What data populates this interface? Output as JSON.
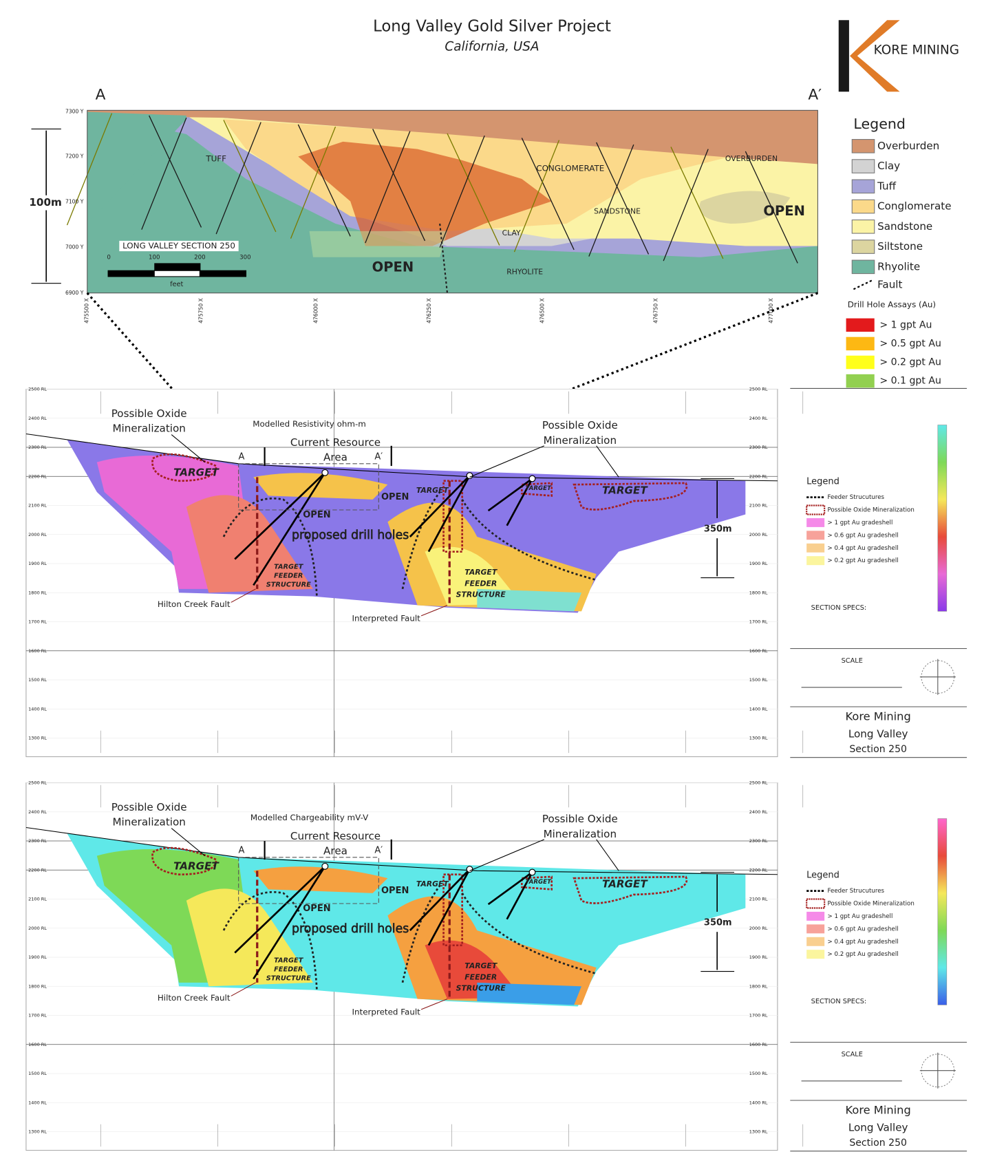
{
  "header": {
    "title": "Long Valley Gold Silver Project",
    "subtitle": "California, USA",
    "logo": "KORE MINING"
  },
  "section": {
    "start": "A",
    "end": "A′",
    "y_labels": [
      "7300 Y",
      "7200 Y",
      "7100 Y",
      "7000 Y",
      "6900 Y"
    ],
    "x_labels": [
      "475500 X",
      "475750 X",
      "476000 X",
      "476250 X",
      "476500 X",
      "476750 X",
      "477000 X"
    ],
    "scale_height": "100m",
    "section_name": "LONG VALLEY SECTION 250",
    "scale_ticks": [
      "0",
      "100",
      "200",
      "300"
    ],
    "scale_unit": "feet",
    "units": {
      "tuff": "TUFF",
      "conglomerate": "CONGLOMERATE",
      "overburden": "OVERBURDEN",
      "sandstone": "SANDSTONE",
      "clay": "CLAY",
      "rhyolite": "RHYOLITE",
      "open_left": "OPEN",
      "open_right": "OPEN"
    }
  },
  "legend": {
    "title": "Legend",
    "items": [
      {
        "label": "Overburden",
        "color": "#d4956f"
      },
      {
        "label": "Clay",
        "color": "#d3d3d3"
      },
      {
        "label": "Tuff",
        "color": "#a6a4d8"
      },
      {
        "label": "Conglomerate",
        "color": "#fbd98a"
      },
      {
        "label": "Sandstone",
        "color": "#fbf3a6"
      },
      {
        "label": "Siltstone",
        "color": "#dcd5a0"
      },
      {
        "label": "Rhyolite",
        "color": "#6fb59f"
      }
    ],
    "fault": "Fault",
    "assay_title": "Drill Hole Assays (Au)",
    "assays": [
      {
        "label": "> 1 gpt Au",
        "color": "#e31a1c"
      },
      {
        "label": "> 0.5 gpt Au",
        "color": "#fdb813"
      },
      {
        "label": "> 0.2 gpt Au",
        "color": "#ffff1a"
      },
      {
        "label": "> 0.1 gpt Au",
        "color": "#92d050"
      }
    ]
  },
  "panels": [
    {
      "model": "Modelled Resistivity ohm-m",
      "rl_labels": [
        "2500 RL",
        "2400 RL",
        "2300 RL",
        "2200 RL",
        "2100 RL",
        "2000 RL",
        "1900 RL",
        "1800 RL",
        "1700 RL",
        "1600 RL",
        "1500 RL",
        "1400 RL",
        "1300 RL"
      ],
      "oxide_left": [
        "Possible Oxide",
        "Mineralization"
      ],
      "oxide_right": [
        "Possible Oxide",
        "Mineralization"
      ],
      "resource": [
        "Current Resource",
        "Area"
      ],
      "a": "A",
      "a_prime": "A′",
      "targets": [
        "TARGET",
        "TARGET",
        "TARGET",
        "TARGET"
      ],
      "open": [
        "OPEN",
        "OPEN"
      ],
      "drill_holes": "proposed drill holes",
      "feeder_left": [
        "TARGET",
        "FEEDER",
        "STRUCTURE"
      ],
      "feeder_right": [
        "TARGET",
        "FEEDER",
        "STRUCTURE"
      ],
      "hilton": "Hilton Creek Fault",
      "interpreted": "Interpreted Fault",
      "depth": "350m",
      "legend": {
        "title": "Legend",
        "items": [
          "Feeder Strucutures",
          "Possible Oxide Mineralization",
          "> 1 gpt Au gradeshell",
          "> 0.6 gpt Au gradeshell",
          "> 0.4 gpt Au gradeshell",
          "> 0.2 gpt Au gradeshell"
        ]
      },
      "specs": "SECTION SPECS:",
      "scale": "SCALE",
      "company": "Kore Mining",
      "project": "Long Valley",
      "section": "Section 250"
    },
    {
      "model": "Modelled Chargeability mV-V",
      "rl_labels": [
        "2500 RL",
        "2400 RL",
        "2300 RL",
        "2200 RL",
        "2100 RL",
        "2000 RL",
        "1900 RL",
        "1800 RL",
        "1700 RL",
        "1600 RL",
        "1500 RL",
        "1400 RL",
        "1300 RL"
      ],
      "oxide_left": [
        "Possible Oxide",
        "Mineralization"
      ],
      "oxide_right": [
        "Possible Oxide",
        "Mineralization"
      ],
      "resource": [
        "Current Resource",
        "Area"
      ],
      "a": "A",
      "a_prime": "A′",
      "targets": [
        "TARGET",
        "TARGET",
        "TARGET",
        "TARGET"
      ],
      "open": [
        "OPEN",
        "OPEN"
      ],
      "drill_holes": "proposed drill holes",
      "feeder_left": [
        "TARGET",
        "FEEDER",
        "STRUCTURE"
      ],
      "feeder_right": [
        "TARGET",
        "FEEDER",
        "STRUCTURE"
      ],
      "hilton": "Hilton Creek Fault",
      "interpreted": "Interpreted Fault",
      "depth": "350m",
      "legend": {
        "title": "Legend",
        "items": [
          "Feeder Strucutures",
          "Possible Oxide Mineralization",
          "> 1 gpt Au gradeshell",
          "> 0.6 gpt Au gradeshell",
          "> 0.4 gpt Au gradeshell",
          "> 0.2 gpt Au gradeshell"
        ]
      },
      "specs": "SECTION SPECS:",
      "scale": "SCALE",
      "company": "Kore Mining",
      "project": "Long Valley",
      "section": "Section 250"
    }
  ]
}
